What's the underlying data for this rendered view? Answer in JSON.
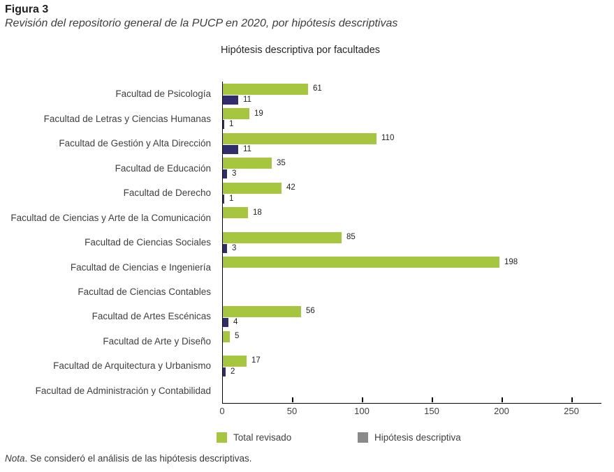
{
  "figure": {
    "label": "Figura 3",
    "caption": "Revisión del repositorio general de la PUCP en 2020, por hipótesis descriptivas",
    "note_prefix": "Nota",
    "note_text": ". Se consideró el análisis de las hipótesis descriptivas."
  },
  "chart_data": {
    "type": "bar",
    "orientation": "horizontal",
    "title": "Hipótesis descriptiva por facultades",
    "categories": [
      "Facultad de Psicología",
      "Facultad de Letras y Ciencias Humanas",
      "Facultad de Gestión y Alta Dirección",
      "Facultad de Educación",
      "Facultad de Derecho",
      "Facultad de Ciencias y Arte de la Comunicación",
      "Facultad de Ciencias Sociales",
      "Facultad de Ciencias e Ingeniería",
      "Facultad de Ciencias Contables",
      "Facultad de Artes Escénicas",
      "Facultad de Arte y Diseño",
      "Facultad de Arquitectura y Urbanismo",
      "Facultad de Administración y Contabilidad"
    ],
    "series": [
      {
        "name": "Total revisado",
        "color": "#A5C63E",
        "legend_color": "#A5C63E",
        "values": [
          61,
          19,
          110,
          35,
          42,
          18,
          85,
          198,
          0,
          56,
          5,
          17,
          0
        ]
      },
      {
        "name": "Hipótesis descriptiva",
        "color": "#312C6B",
        "legend_color": "#8A8A8A",
        "values": [
          11,
          1,
          11,
          3,
          1,
          0,
          3,
          0,
          0,
          4,
          0,
          2,
          0
        ]
      }
    ],
    "show_value_labels": true,
    "xlim": [
      0,
      250
    ],
    "x_ticks": [
      0,
      50,
      100,
      150,
      200,
      250
    ],
    "grid": false,
    "legend_position": "bottom"
  }
}
